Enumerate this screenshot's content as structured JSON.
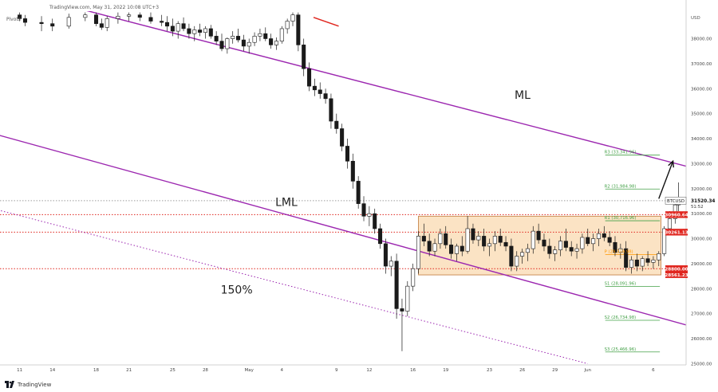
{
  "header": {
    "source_line": "TradingView.com, May 31, 2022 10:08 UTC+3",
    "indicator": "Pivots"
  },
  "footer": {
    "brand": "TradingView"
  },
  "chart_data": {
    "type": "candlestick",
    "symbol": "BTCUSD",
    "y_axis": {
      "currency_label": "USD",
      "ticks": [
        "38000.00",
        "37000.00",
        "36000.00",
        "35000.00",
        "34000.00",
        "33000.00",
        "32000.00",
        "31000.00",
        "30000.00",
        "29000.00",
        "28000.00",
        "27000.00",
        "26000.00",
        "25000.00"
      ],
      "ylim": [
        24950,
        39100
      ]
    },
    "x_axis": {
      "ticks": [
        {
          "label": "11",
          "day": -20
        },
        {
          "label": "14",
          "day": -17
        },
        {
          "label": "18",
          "day": -13
        },
        {
          "label": "21",
          "day": -10
        },
        {
          "label": "25",
          "day": -6
        },
        {
          "label": "28",
          "day": -3
        },
        {
          "label": "May",
          "day": 1
        },
        {
          "label": "4",
          "day": 4
        },
        {
          "label": "9",
          "day": 9
        },
        {
          "label": "12",
          "day": 12
        },
        {
          "label": "16",
          "day": 16
        },
        {
          "label": "19",
          "day": 19
        },
        {
          "label": "23",
          "day": 23
        },
        {
          "label": "26",
          "day": 26
        },
        {
          "label": "29",
          "day": 29
        },
        {
          "label": "Jun",
          "day": 32
        },
        {
          "label": "6",
          "day": 38
        }
      ],
      "xlim": [
        -21.8,
        41
      ]
    },
    "candles": [
      [
        -20,
        38950,
        39050,
        38700,
        38800
      ],
      [
        -19.5,
        38800,
        38950,
        38500,
        38650
      ],
      [
        -18,
        38650,
        38900,
        38300,
        38600
      ],
      [
        -17,
        38600,
        38800,
        38300,
        38500
      ],
      [
        -15.5,
        38500,
        39000,
        38400,
        38850
      ],
      [
        -14,
        38850,
        39050,
        38700,
        38950
      ],
      [
        -13,
        38950,
        39050,
        38500,
        38600
      ],
      [
        -12.5,
        38600,
        38800,
        38350,
        38450
      ],
      [
        -12,
        38450,
        38900,
        38300,
        38800
      ],
      [
        -11,
        38800,
        39050,
        38600,
        38900
      ],
      [
        -10,
        38900,
        39050,
        38700,
        38950
      ],
      [
        -9,
        38950,
        39050,
        38700,
        38850
      ],
      [
        -8,
        38850,
        39050,
        38600,
        38700
      ],
      [
        -7,
        38700,
        38950,
        38500,
        38650
      ],
      [
        -6.5,
        38650,
        38900,
        38300,
        38500
      ],
      [
        -6,
        38500,
        38800,
        38100,
        38300
      ],
      [
        -5.5,
        38300,
        38700,
        38000,
        38600
      ],
      [
        -5,
        38600,
        38850,
        38300,
        38400
      ],
      [
        -4.5,
        38400,
        38600,
        38000,
        38200
      ],
      [
        -4,
        38200,
        38500,
        37900,
        38350
      ],
      [
        -3.5,
        38350,
        38600,
        38100,
        38250
      ],
      [
        -3,
        38250,
        38500,
        38000,
        38400
      ],
      [
        -2.5,
        38400,
        38550,
        38000,
        38100
      ],
      [
        -2,
        38100,
        38300,
        37750,
        37900
      ],
      [
        -1.5,
        37900,
        38200,
        37500,
        37600
      ],
      [
        -1,
        37600,
        38050,
        37400,
        38000
      ],
      [
        -0.5,
        38000,
        38300,
        37800,
        38100
      ],
      [
        0,
        38100,
        38400,
        37850,
        37950
      ],
      [
        0.5,
        37950,
        38150,
        37500,
        37700
      ],
      [
        1,
        37700,
        38000,
        37400,
        37850
      ],
      [
        1.5,
        37850,
        38250,
        37700,
        38100
      ],
      [
        2,
        38100,
        38400,
        37900,
        38200
      ],
      [
        2.5,
        38200,
        38450,
        37900,
        38000
      ],
      [
        3,
        38000,
        38200,
        37600,
        37750
      ],
      [
        3.5,
        37750,
        38050,
        37550,
        37900
      ],
      [
        4,
        37900,
        38500,
        37800,
        38400
      ],
      [
        4.5,
        38400,
        38800,
        38200,
        38700
      ],
      [
        5,
        38700,
        39050,
        38500,
        38950
      ],
      [
        5.5,
        38950,
        39050,
        37500,
        37750
      ],
      [
        6,
        37750,
        38000,
        36500,
        36800
      ],
      [
        6.5,
        36800,
        37050,
        35900,
        36100
      ],
      [
        7,
        36100,
        36400,
        35700,
        35950
      ],
      [
        7.5,
        35950,
        36250,
        35600,
        35800
      ],
      [
        8,
        35800,
        36000,
        35400,
        35600
      ],
      [
        8.5,
        35600,
        35800,
        34400,
        34700
      ],
      [
        9,
        34700,
        35000,
        34200,
        34400
      ],
      [
        9.5,
        34400,
        34600,
        33500,
        33700
      ],
      [
        10,
        33700,
        34000,
        32800,
        33100
      ],
      [
        10.5,
        33100,
        33400,
        32000,
        32300
      ],
      [
        11,
        32300,
        32500,
        31200,
        31400
      ],
      [
        11.5,
        31400,
        31700,
        30700,
        30900
      ],
      [
        12,
        30900,
        31300,
        30500,
        31000
      ],
      [
        12.5,
        31000,
        31200,
        30200,
        30400
      ],
      [
        13,
        30400,
        30600,
        29600,
        29800
      ],
      [
        13.5,
        29800,
        30000,
        28600,
        28900
      ],
      [
        14,
        28900,
        29300,
        28500,
        29100
      ],
      [
        14.5,
        29100,
        29400,
        26800,
        27200
      ],
      [
        15,
        27200,
        27600,
        25500,
        27100
      ],
      [
        15.5,
        27100,
        28300,
        26900,
        28100
      ],
      [
        16,
        28100,
        29000,
        27900,
        28800
      ],
      [
        16.5,
        28800,
        30300,
        28600,
        30100
      ],
      [
        17,
        30100,
        30600,
        29700,
        29900
      ],
      [
        17.5,
        29900,
        30200,
        29300,
        29500
      ],
      [
        18,
        29500,
        30000,
        29300,
        29800
      ],
      [
        18.5,
        29800,
        30400,
        29600,
        30200
      ],
      [
        19,
        30200,
        30500,
        29600,
        29750
      ],
      [
        19.5,
        29750,
        30000,
        29200,
        29400
      ],
      [
        20,
        29400,
        29800,
        29100,
        29700
      ],
      [
        20.5,
        29700,
        30100,
        29300,
        29500
      ],
      [
        21,
        29500,
        30900,
        29400,
        30400
      ],
      [
        21.5,
        30400,
        30600,
        29800,
        29950
      ],
      [
        22,
        29950,
        30300,
        29700,
        30100
      ],
      [
        22.5,
        30100,
        30400,
        29500,
        29700
      ],
      [
        23,
        29700,
        30000,
        29300,
        29800
      ],
      [
        23.5,
        29800,
        30300,
        29500,
        30100
      ],
      [
        24,
        30100,
        30400,
        29700,
        29850
      ],
      [
        24.5,
        29850,
        30100,
        29500,
        29700
      ],
      [
        25,
        29700,
        30000,
        28700,
        28900
      ],
      [
        25.5,
        28900,
        29500,
        28700,
        29300
      ],
      [
        26,
        29300,
        29600,
        29000,
        29450
      ],
      [
        26.5,
        29450,
        29800,
        29100,
        29600
      ],
      [
        27,
        29600,
        30500,
        29400,
        30300
      ],
      [
        27.5,
        30300,
        30600,
        29800,
        29950
      ],
      [
        28,
        29950,
        30200,
        29500,
        29700
      ],
      [
        28.5,
        29700,
        30000,
        29200,
        29400
      ],
      [
        29,
        29400,
        29700,
        29100,
        29550
      ],
      [
        29.5,
        29550,
        30100,
        29300,
        29900
      ],
      [
        30,
        29900,
        30400,
        29500,
        29650
      ],
      [
        30.5,
        29650,
        29900,
        29300,
        29500
      ],
      [
        31,
        29500,
        29800,
        29200,
        29600
      ],
      [
        31.5,
        29600,
        30200,
        29400,
        30050
      ],
      [
        32,
        30050,
        30400,
        29700,
        29800
      ],
      [
        32.5,
        29800,
        30200,
        29500,
        30000
      ],
      [
        33,
        30000,
        30400,
        29700,
        30200
      ],
      [
        33.5,
        30200,
        30500,
        29900,
        30050
      ],
      [
        34,
        30050,
        30300,
        29700,
        29850
      ],
      [
        34.5,
        29850,
        30100,
        29300,
        29450
      ],
      [
        35,
        29450,
        29800,
        29200,
        29600
      ],
      [
        35.5,
        29600,
        29900,
        28700,
        28850
      ],
      [
        36,
        28850,
        29300,
        28600,
        29150
      ],
      [
        36.5,
        29150,
        29400,
        28700,
        28900
      ],
      [
        37,
        28900,
        29300,
        28700,
        29200
      ],
      [
        37.5,
        29200,
        29500,
        28900,
        29050
      ],
      [
        38,
        29050,
        29300,
        28800,
        29150
      ],
      [
        38.5,
        29150,
        29500,
        28900,
        29400
      ],
      [
        39,
        29400,
        30500,
        29300,
        30400
      ],
      [
        39.5,
        30400,
        31100,
        30200,
        30800
      ],
      [
        40,
        30800,
        31500,
        30600,
        31350
      ],
      [
        40.3,
        31350,
        32250,
        31100,
        31520
      ]
    ],
    "last_price": {
      "label": "BTCUSD",
      "value": "31520.34",
      "countdown": "51:52"
    },
    "price_labels": [
      {
        "value": "30960.64",
        "y": 30960.64,
        "color": "#e0261f"
      },
      {
        "value": "30261.13",
        "y": 30261.13,
        "color": "#e0261f"
      },
      {
        "value": "28800.00",
        "y": 28800.0,
        "color": "#e0261f"
      },
      {
        "value": "28561.23",
        "y": 28561.23,
        "color": "#e0261f"
      }
    ],
    "pivots": [
      {
        "label": "R3 (33,341.96)",
        "value": 33341.96,
        "color": "#43a047"
      },
      {
        "label": "R2 (31,984.98)",
        "value": 31984.98,
        "color": "#43a047"
      },
      {
        "label": "R1 (30,716.96)",
        "value": 30716.96,
        "color": "#43a047"
      },
      {
        "label": "P (29,359.98)",
        "value": 29359.98,
        "color": "#ff9800"
      },
      {
        "label": "S1 (28,091.96)",
        "value": 28091.96,
        "color": "#43a047"
      },
      {
        "label": "S2 (26,734.98)",
        "value": 26734.98,
        "color": "#43a047"
      },
      {
        "label": "S3 (25,466.96)",
        "value": 25466.96,
        "color": "#43a047"
      }
    ],
    "pivot_x_range": [
      33.6,
      38.6
    ],
    "annotations": [
      {
        "text": "ML",
        "day": 25.3,
        "y": 35600
      },
      {
        "text": "LML",
        "day": 3.4,
        "y": 31300
      },
      {
        "text": "150%",
        "day": -1.6,
        "y": 27800
      }
    ],
    "trendlines": [
      {
        "name": "ML",
        "day1": -15,
        "y1": 39250,
        "day2": 41,
        "y2": 32900,
        "color": "#9c27b0",
        "style": "solid"
      },
      {
        "name": "LML",
        "day1": -22,
        "y1": 34150,
        "day2": 41,
        "y2": 26550,
        "color": "#9c27b0",
        "style": "solid"
      },
      {
        "name": "150%",
        "day1": -22,
        "y1": 31150,
        "day2": 32,
        "y2": 25000,
        "color": "#9c27b0",
        "style": "dotted"
      }
    ],
    "box": {
      "day1": 16.5,
      "day2": 38.7,
      "y1": 30900,
      "y2": 28550,
      "fill": "#fbe3c4",
      "stroke": "#c17a3a"
    },
    "horizontal_lines": [
      {
        "y": 31520.34,
        "color": "#9e9e9e",
        "style": "dotted"
      },
      {
        "y": 30261.13,
        "color": "#e0261f",
        "style": "dotted"
      },
      {
        "y": 28800.0,
        "color": "#e0261f",
        "style": "dotted"
      },
      {
        "y": 30960.64,
        "color": "#e0261f",
        "style": "dotted"
      }
    ],
    "arrow": {
      "day1": 38.5,
      "y1": 31600,
      "day2": 39.8,
      "y2": 33100
    },
    "colors": {
      "up": "#1a1a1a",
      "down": "#1a1a1a",
      "wick": "#1a1a1a"
    }
  }
}
